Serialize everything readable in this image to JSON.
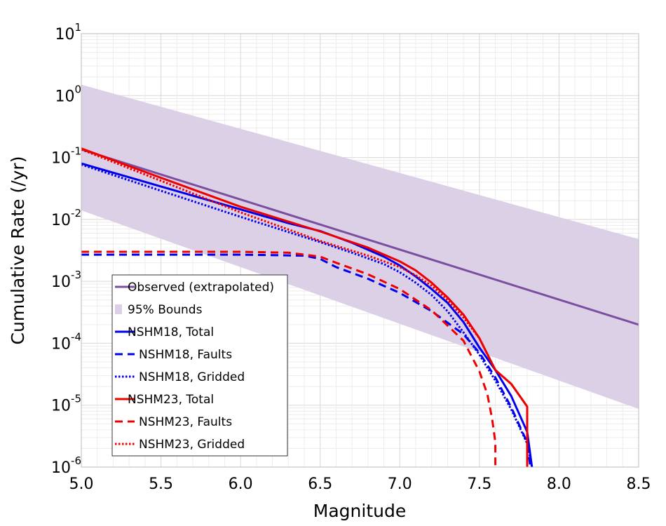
{
  "chart_data": {
    "type": "line",
    "xlabel": "Magnitude",
    "ylabel": "Cumulative Rate (/yr)",
    "xlim": [
      5.0,
      8.5
    ],
    "ylim": [
      1e-06,
      10
    ],
    "yscale": "log",
    "grid": true,
    "legend_position": "lower-left",
    "x_ticks": [
      "5.0",
      "5.5",
      "6.0",
      "6.5",
      "7.0",
      "7.5",
      "8.0",
      "8.5"
    ],
    "y_ticks": [
      {
        "base": "10",
        "exp": "1",
        "value": 10
      },
      {
        "base": "10",
        "exp": "0",
        "value": 1
      },
      {
        "base": "10",
        "exp": "-1",
        "value": 0.1
      },
      {
        "base": "10",
        "exp": "-2",
        "value": 0.01
      },
      {
        "base": "10",
        "exp": "-3",
        "value": 0.001
      },
      {
        "base": "10",
        "exp": "-4",
        "value": 0.0001
      },
      {
        "base": "10",
        "exp": "-5",
        "value": 1e-05
      },
      {
        "base": "10",
        "exp": "-6",
        "value": 1e-06
      }
    ],
    "bounds": {
      "name": "95% Bounds",
      "color": "#dcd0e6",
      "x": [
        5.0,
        8.5
      ],
      "upper": [
        1.5,
        0.0048
      ],
      "lower": [
        0.014,
        8.7e-06
      ]
    },
    "series": [
      {
        "name": "Observed (extrapolated)",
        "color": "#7b4fa0",
        "dash": "solid",
        "x": [
          5.0,
          8.5
        ],
        "y": [
          0.135,
          0.0002
        ]
      },
      {
        "name": "NSHM18, Total",
        "color": "#0000ee",
        "dash": "solid",
        "x": [
          5.0,
          5.5,
          6.0,
          6.3,
          6.5,
          6.7,
          6.9,
          7.0,
          7.1,
          7.2,
          7.3,
          7.4,
          7.5,
          7.6,
          7.7,
          7.8,
          7.83
        ],
        "y": [
          0.08,
          0.034,
          0.0145,
          0.0087,
          0.0065,
          0.0042,
          0.0025,
          0.0018,
          0.0012,
          0.00075,
          0.00045,
          0.00022,
          8.5e-05,
          3.7e-05,
          1.4e-05,
          3.7e-06,
          1e-06
        ]
      },
      {
        "name": "NSHM18, Faults",
        "color": "#0000ee",
        "dash": "dashed",
        "x": [
          5.0,
          6.0,
          6.4,
          6.5,
          6.6,
          6.8,
          7.0,
          7.2,
          7.4,
          7.5,
          7.6,
          7.7,
          7.8,
          7.82
        ],
        "y": [
          0.0027,
          0.0027,
          0.0026,
          0.0023,
          0.0017,
          0.0011,
          0.00065,
          0.00033,
          0.00014,
          7e-05,
          2.8e-05,
          9.2e-06,
          2.5e-06,
          1e-06
        ]
      },
      {
        "name": "NSHM18, Gridded",
        "color": "#0000ee",
        "dash": "dotted",
        "x": [
          5.0,
          5.5,
          6.0,
          6.5,
          6.7,
          6.9,
          7.0,
          7.1,
          7.2,
          7.3,
          7.4,
          7.5,
          7.6,
          7.7,
          7.8,
          7.83
        ],
        "y": [
          0.077,
          0.029,
          0.011,
          0.0043,
          0.0029,
          0.0019,
          0.0014,
          0.00095,
          0.0006,
          0.00033,
          0.00015,
          6.5e-05,
          2.5e-05,
          8.5e-06,
          2.4e-06,
          1e-06
        ]
      },
      {
        "name": "NSHM23, Total",
        "color": "#ee0000",
        "dash": "solid",
        "x": [
          5.0,
          5.5,
          6.0,
          6.5,
          6.8,
          7.0,
          7.1,
          7.2,
          7.3,
          7.4,
          7.5,
          7.6,
          7.7,
          7.8,
          7.8
        ],
        "y": [
          0.14,
          0.047,
          0.016,
          0.0064,
          0.0035,
          0.0021,
          0.0015,
          0.00095,
          0.00055,
          0.00029,
          0.00012,
          3.7e-05,
          2.2e-05,
          9.5e-06,
          1e-06
        ]
      },
      {
        "name": "NSHM23, Faults",
        "color": "#ee0000",
        "dash": "dashed",
        "x": [
          5.0,
          6.0,
          6.3,
          6.5,
          6.6,
          6.8,
          7.0,
          7.2,
          7.4,
          7.5,
          7.55,
          7.58,
          7.6,
          7.6
        ],
        "y": [
          0.003,
          0.003,
          0.0029,
          0.0025,
          0.002,
          0.0013,
          0.00075,
          0.00034,
          0.00011,
          3.5e-05,
          1.5e-05,
          6e-06,
          2.5e-06,
          1e-06
        ]
      },
      {
        "name": "NSHM23, Gridded",
        "color": "#ee0000",
        "dash": "dotted",
        "x": [
          5.0,
          5.5,
          6.0,
          6.5,
          6.8,
          7.0,
          7.1,
          7.2,
          7.3,
          7.4,
          7.5,
          7.6,
          7.7,
          7.8,
          7.8
        ],
        "y": [
          0.135,
          0.042,
          0.013,
          0.0045,
          0.0026,
          0.0017,
          0.00125,
          0.00085,
          0.0005,
          0.00026,
          0.00012,
          3.7e-05,
          2.2e-05,
          9.5e-06,
          1e-06
        ]
      }
    ],
    "legend": [
      {
        "label": "Observed (extrapolated)",
        "type": "line",
        "color": "#7b4fa0",
        "dash": "solid"
      },
      {
        "label": "95% Bounds",
        "type": "patch",
        "color": "#dcd0e6"
      },
      {
        "label": "NSHM18, Total",
        "type": "line",
        "color": "#0000ee",
        "dash": "solid"
      },
      {
        "label": "NSHM18, Faults",
        "type": "line",
        "color": "#0000ee",
        "dash": "dashed"
      },
      {
        "label": "NSHM18, Gridded",
        "type": "line",
        "color": "#0000ee",
        "dash": "dotted"
      },
      {
        "label": "NSHM23, Total",
        "type": "line",
        "color": "#ee0000",
        "dash": "solid"
      },
      {
        "label": "NSHM23, Faults",
        "type": "line",
        "color": "#ee0000",
        "dash": "dashed"
      },
      {
        "label": "NSHM23, Gridded",
        "type": "line",
        "color": "#ee0000",
        "dash": "dotted"
      }
    ]
  }
}
